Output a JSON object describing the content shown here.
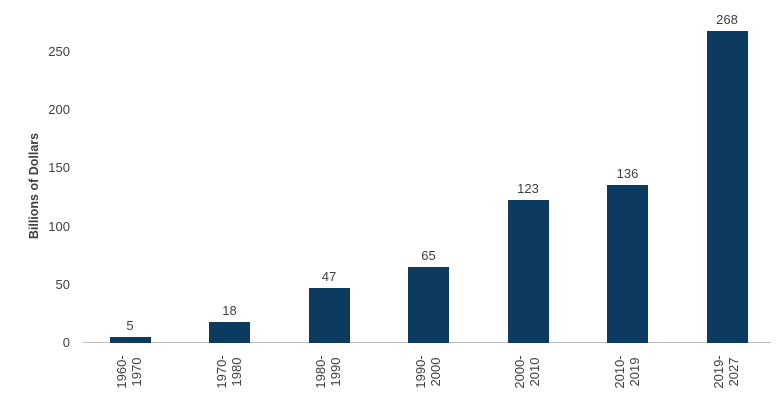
{
  "chart_data": {
    "type": "bar",
    "title": "",
    "xlabel": "",
    "ylabel": "Billions of Dollars",
    "categories": [
      "1960-\n1970",
      "1970-\n1980",
      "1980-\n1990",
      "1990-\n2000",
      "2000-\n2010",
      "2010-\n2019",
      "2019-\n2027"
    ],
    "values": [
      5,
      18,
      47,
      65,
      123,
      136,
      268
    ],
    "yticks": [
      0,
      50,
      100,
      150,
      200,
      250
    ],
    "ylim": [
      0,
      275
    ],
    "grid": false,
    "legend": false,
    "bar_color": "#0d3b60",
    "axis_line_color": "#c0c0c0",
    "text_color": "#404040",
    "background_color": "#ffffff"
  }
}
